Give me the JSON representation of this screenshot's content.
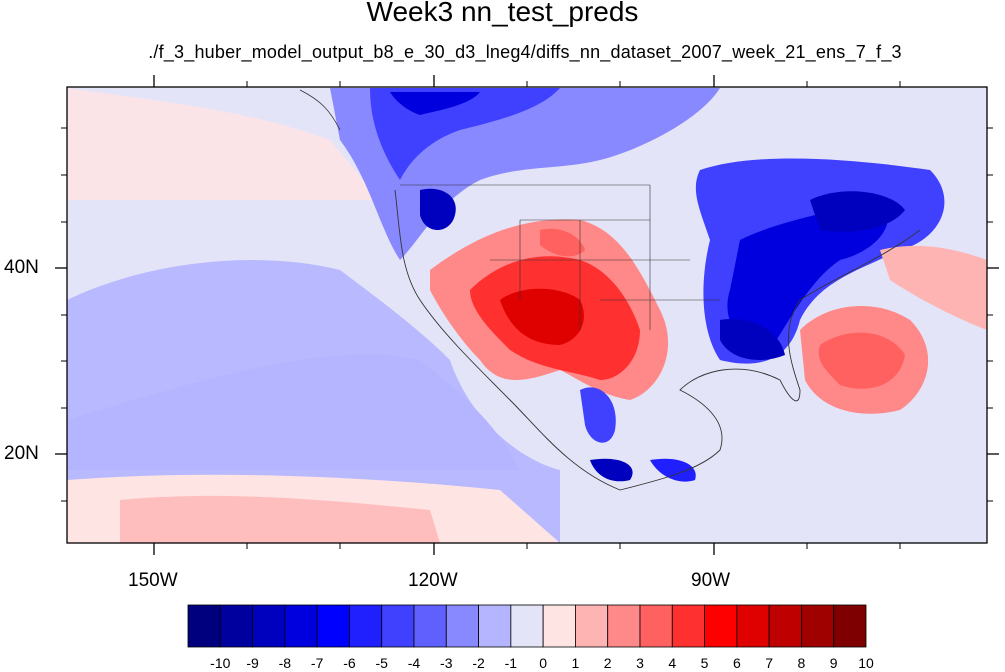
{
  "title": "Week3 nn_test_preds",
  "subtitle": "./f_3_huber_model_output_b8_e_30_d3_lneg4/diffs_nn_dataset_2007_week_21_ens_7_f_3",
  "axes": {
    "x_ticks": [
      "150W",
      "120W",
      "90W"
    ],
    "y_ticks": [
      "40N",
      "20N"
    ]
  },
  "colorbar": {
    "labels": [
      "-10",
      "-9",
      "-8",
      "-7",
      "-6",
      "-5",
      "-4",
      "-3",
      "-2",
      "-1",
      "0",
      "1",
      "2",
      "3",
      "4",
      "5",
      "6",
      "7",
      "8",
      "9",
      "10"
    ],
    "colors": [
      "#00007f",
      "#00009f",
      "#0000bf",
      "#0000df",
      "#0000ff",
      "#2020ff",
      "#4040ff",
      "#6060ff",
      "#8888ff",
      "#b4b4ff",
      "#e4e4f8",
      "#ffe4e4",
      "#ffb4b4",
      "#ff8888",
      "#ff6060",
      "#ff3030",
      "#ff0000",
      "#df0000",
      "#bf0000",
      "#9f0000",
      "#7f0000"
    ]
  }
}
